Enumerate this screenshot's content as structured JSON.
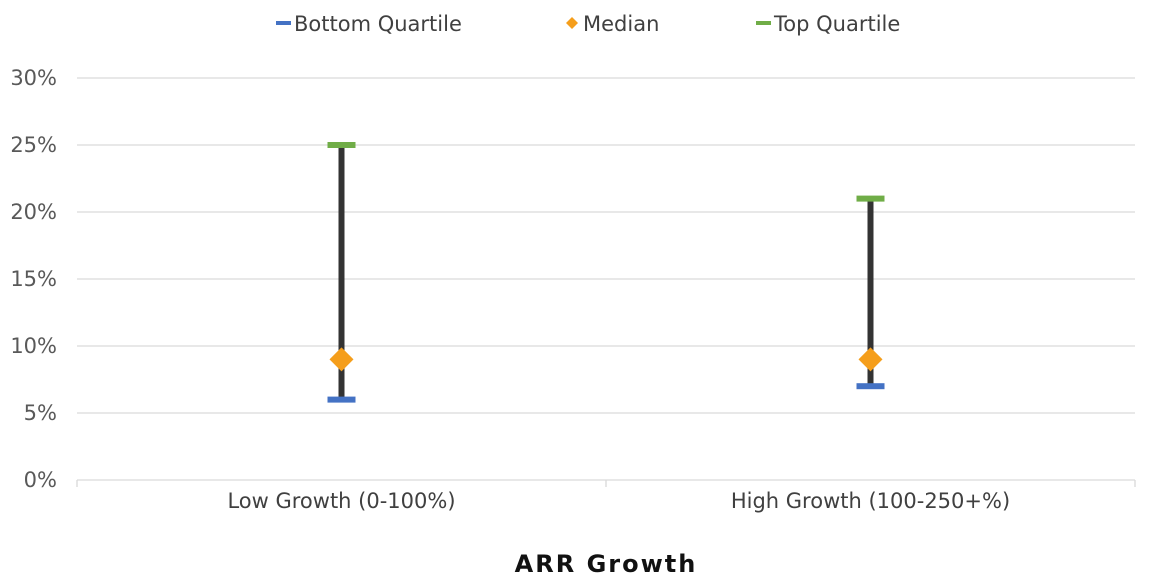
{
  "chart_data": {
    "type": "range",
    "title": "",
    "xlabel": "ARR Growth",
    "ylabel": "",
    "ylim": [
      0,
      30
    ],
    "y_ticks": [
      "0%",
      "5%",
      "10%",
      "15%",
      "20%",
      "25%",
      "30%"
    ],
    "y_tick_values": [
      0,
      5,
      10,
      15,
      20,
      25,
      30
    ],
    "categories": [
      "Low Growth (0-100%)",
      "High Growth (100-250+%)"
    ],
    "series": [
      {
        "name": "Bottom Quartile",
        "values": [
          6,
          7
        ],
        "color": "#4472C4",
        "marker": "dash"
      },
      {
        "name": "Median",
        "values": [
          9,
          9
        ],
        "color": "#F59E1B",
        "marker": "diamond"
      },
      {
        "name": "Top Quartile",
        "values": [
          25,
          21
        ],
        "color": "#70AD47",
        "marker": "dash"
      }
    ],
    "range_line_color": "#333333",
    "grid": true,
    "legend_position": "top"
  }
}
